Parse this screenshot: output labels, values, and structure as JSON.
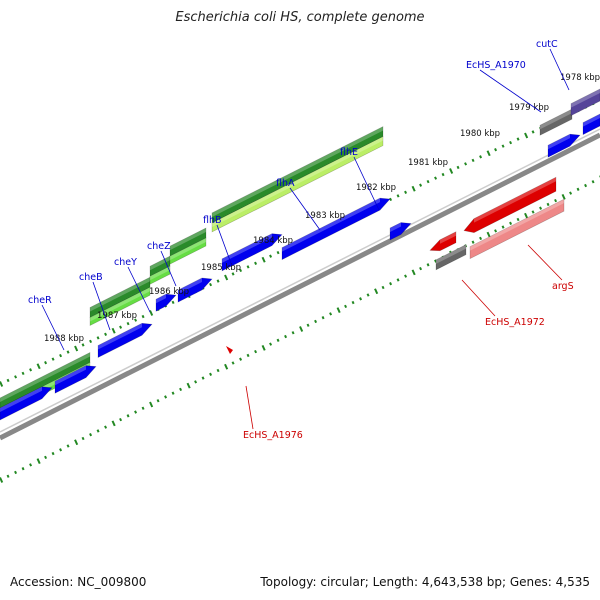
{
  "title": "Escherichia coli HS, complete genome",
  "footer": {
    "accession": "Accession: NC_009800",
    "summary": "Topology: circular; Length: 4,643,538 bp; Genes: 4,535"
  },
  "kbp_labels": [
    "1978 kbp",
    "1979 kbp",
    "1980 kbp",
    "1981 kbp",
    "1982 kbp",
    "1983 kbp",
    "1984 kbp",
    "1985 kbp",
    "1986 kbp",
    "1987 kbp",
    "1988 kbp"
  ],
  "gene_labels": {
    "top": [
      "cutC",
      "EcHS_A1970",
      "flhE",
      "flhA",
      "flhB",
      "cheZ",
      "cheY",
      "cheB",
      "cheR"
    ],
    "bottom": [
      "argS",
      "EcHS_A1972",
      "EcHS_A1976"
    ]
  },
  "colors": {
    "forward_cds": "#0000ee",
    "reverse_cds": "#dd0000",
    "reverse_cds_light": "#ee8888",
    "gray_gene": "#666666",
    "purple_gene": "#554499",
    "green_dark": "#2a8a2a",
    "green_light": "#66dd44",
    "green_pale": "#bbee66",
    "backbone": "#888888",
    "tick": "#228822",
    "label_top": "#0000cc",
    "label_bottom": "#cc0000"
  }
}
